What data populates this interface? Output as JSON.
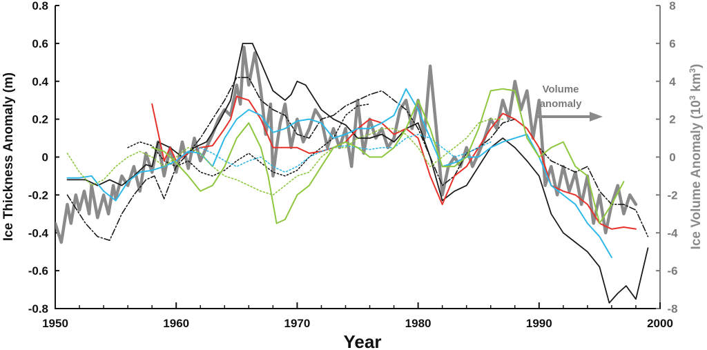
{
  "chart_data": {
    "type": "line",
    "xlabel": "Year",
    "ylabel_left": "Ice Thickness Anomaly (m)",
    "ylabel_right": "Ice Volume Anomaly (10³ km³)",
    "xlim": [
      1950,
      2000
    ],
    "ylim_left": [
      -0.8,
      0.8
    ],
    "ylim_right": [
      -8,
      8
    ],
    "x_ticks": [
      "1950",
      "1960",
      "1970",
      "1980",
      "1990",
      "2000"
    ],
    "y_ticks_left": [
      "0.8",
      "0.6",
      "0.4",
      "0.2",
      "0",
      "-0.2",
      "-0.4",
      "-0.6",
      "-0.8"
    ],
    "y_ticks_right": [
      "8",
      "6",
      "4",
      "2",
      "0",
      "-2",
      "-4",
      "-6",
      "-8"
    ],
    "grid": false,
    "annotation": {
      "line1": "Volume",
      "line2": "anomaly",
      "arrow": "right"
    },
    "colors": {
      "volume": "#8a8a8a",
      "black": "#1a1a1a",
      "red": "#e8302a",
      "cyan": "#2eb8e8",
      "green": "#8dc63f",
      "axis": "#111111",
      "right_axis": "#7a7a7a"
    },
    "series": [
      {
        "axis": "right",
        "style": "thick-gray",
        "x": [
          1950.0,
          1950.5,
          1951.0,
          1951.3,
          1951.7,
          1952.0,
          1952.4,
          1952.8,
          1953.0,
          1953.5,
          1954.0,
          1954.4,
          1954.8,
          1955.0,
          1955.5,
          1956.0,
          1956.5,
          1957.0,
          1957.5,
          1958.0,
          1958.5,
          1959.0,
          1959.5,
          1960.0,
          1960.5,
          1961.0,
          1961.5,
          1962.0,
          1962.5,
          1963.0,
          1963.5,
          1964.0,
          1964.5,
          1965.0,
          1965.3,
          1965.6,
          1966.0,
          1966.5,
          1967.0,
          1967.4,
          1967.8,
          1968.0,
          1968.3,
          1968.6,
          1969.0,
          1969.5,
          1970.0,
          1970.5,
          1971.0,
          1971.5,
          1972.0,
          1972.5,
          1973.0,
          1973.5,
          1974.0,
          1974.5,
          1975.0,
          1975.5,
          1976.0,
          1976.5,
          1977.0,
          1977.5,
          1978.0,
          1978.5,
          1979.0,
          1979.5,
          1980.0,
          1980.5,
          1981.0,
          1981.5,
          1982.0,
          1982.5,
          1983.0,
          1983.5,
          1984.0,
          1984.5,
          1985.0,
          1985.5,
          1986.0,
          1986.5,
          1987.0,
          1987.5,
          1988.0,
          1988.5,
          1989.0,
          1989.5,
          1990.0,
          1990.5,
          1991.0,
          1991.5,
          1992.0,
          1992.5,
          1993.0,
          1993.5,
          1994.0,
          1994.5,
          1995.0,
          1995.5,
          1996.0,
          1996.5,
          1997.0,
          1997.5,
          1998.0
        ],
        "y": [
          -3.5,
          -4.5,
          -2.5,
          -3.5,
          -2.0,
          -2.8,
          -1.8,
          -3.0,
          -1.5,
          -3.2,
          -2.0,
          -3.0,
          -1.5,
          -2.2,
          -1.0,
          -1.5,
          -0.5,
          -1.8,
          0.2,
          -0.8,
          0.8,
          -1.0,
          0.5,
          -0.8,
          0.8,
          -0.6,
          1.0,
          -0.2,
          0.5,
          1.2,
          2.0,
          2.5,
          2.2,
          3.8,
          2.8,
          5.8,
          3.8,
          5.5,
          3.5,
          1.2,
          2.8,
          -1.0,
          0.5,
          1.8,
          2.8,
          0.5,
          2.0,
          0.8,
          1.5,
          2.5,
          2.0,
          0.5,
          1.5,
          0.5,
          1.5,
          -0.5,
          3.0,
          0.2,
          2.0,
          1.0,
          1.5,
          0.5,
          1.0,
          2.5,
          3.0,
          1.5,
          3.0,
          1.0,
          4.8,
          1.5,
          -2.0,
          -0.5,
          0.0,
          -0.5,
          0.5,
          -0.5,
          0.2,
          1.0,
          2.0,
          1.5,
          3.0,
          2.0,
          4.0,
          2.5,
          3.5,
          1.0,
          3.0,
          -1.5,
          -0.5,
          -2.0,
          -0.5,
          -1.8,
          -0.8,
          -2.5,
          -1.0,
          -3.5,
          -2.0,
          -4.0,
          -2.5,
          -1.5,
          -3.0,
          -2.0,
          -2.5
        ]
      },
      {
        "axis": "left",
        "style": "black-solid",
        "x": [
          1951.0,
          1952.5,
          1953.5,
          1954.5,
          1955.5,
          1956.5,
          1957.5,
          1958.0,
          1958.5,
          1959.5,
          1960.5,
          1961.5,
          1962.5,
          1963.5,
          1964.5,
          1965.5,
          1966.3,
          1967.0,
          1968.0,
          1969.0,
          1969.5,
          1970.0,
          1970.7,
          1971.5,
          1972.0,
          1973.0,
          1974.0,
          1975.0,
          1976.0,
          1977.0,
          1978.0,
          1979.0,
          1980.0,
          1981.0,
          1982.0,
          1983.0,
          1984.0,
          1985.0,
          1986.0,
          1987.0,
          1988.0,
          1989.0,
          1990.0,
          1991.0,
          1992.0,
          1993.0,
          1994.0,
          1995.0,
          1995.8,
          1996.5,
          1997.2,
          1998.0,
          1999.0
        ],
        "y": [
          -0.12,
          -0.12,
          -0.15,
          -0.12,
          -0.15,
          -0.1,
          -0.04,
          -0.05,
          0.08,
          0.05,
          0.0,
          0.05,
          0.08,
          0.18,
          0.3,
          0.6,
          0.6,
          0.5,
          0.35,
          0.3,
          0.33,
          0.4,
          0.38,
          0.3,
          0.25,
          0.2,
          0.17,
          0.1,
          0.1,
          0.12,
          0.08,
          0.15,
          0.18,
          0.0,
          -0.23,
          -0.18,
          -0.15,
          -0.05,
          0.05,
          0.1,
          0.05,
          -0.02,
          -0.1,
          -0.3,
          -0.4,
          -0.45,
          -0.5,
          -0.58,
          -0.77,
          -0.72,
          -0.68,
          -0.75,
          -0.48
        ]
      },
      {
        "axis": "left",
        "style": "black-dashdot",
        "x": [
          1951.0,
          1952.5,
          1953.5,
          1954.5,
          1955.5,
          1956.5,
          1957.5,
          1958.2,
          1959.0,
          1960.0,
          1961.0,
          1962.0,
          1963.0,
          1964.0,
          1965.0,
          1966.0,
          1967.0,
          1968.0,
          1969.0,
          1970.0,
          1971.0,
          1972.0,
          1973.0,
          1974.0,
          1975.0,
          1976.0,
          1977.0,
          1978.0,
          1979.0,
          1980.0,
          1981.0,
          1982.0,
          1983.0,
          1984.0,
          1985.0,
          1986.0,
          1987.0,
          1988.0,
          1989.0,
          1990.0,
          1991.0,
          1992.0,
          1993.0,
          1994.0,
          1995.0,
          1996.0,
          1997.0,
          1998.0,
          1999.0
        ],
        "y": [
          -0.2,
          -0.35,
          -0.42,
          -0.44,
          -0.3,
          -0.2,
          -0.12,
          -0.1,
          -0.22,
          -0.05,
          0.02,
          0.1,
          0.2,
          0.3,
          0.42,
          0.42,
          0.3,
          0.25,
          0.22,
          0.12,
          0.1,
          0.2,
          0.22,
          0.27,
          0.3,
          0.33,
          0.35,
          0.3,
          0.25,
          0.15,
          0.0,
          -0.15,
          -0.1,
          0.02,
          0.05,
          0.1,
          0.18,
          0.2,
          0.15,
          0.05,
          -0.02,
          -0.05,
          -0.08,
          -0.05,
          -0.18,
          -0.25,
          -0.25,
          -0.28,
          -0.42
        ]
      },
      {
        "axis": "left",
        "style": "black-dotted",
        "x": [
          1956.0,
          1957.0,
          1958.0,
          1959.0,
          1960.0,
          1961.0,
          1962.0,
          1963.0,
          1964.0,
          1965.0,
          1966.0,
          1967.0,
          1968.0,
          1969.0,
          1970.0,
          1971.0,
          1972.0,
          1973.0,
          1974.0,
          1975.0,
          1976.0
        ],
        "y": [
          0.05,
          0.08,
          0.06,
          -0.02,
          -0.05,
          -0.02,
          -0.08,
          -0.1,
          -0.07,
          -0.02,
          0.02,
          -0.03,
          -0.08,
          -0.1,
          -0.07,
          0.0,
          0.05,
          0.1,
          0.22,
          0.27,
          0.28
        ]
      },
      {
        "axis": "left",
        "style": "red",
        "x": [
          1958.0,
          1959.0,
          1959.5,
          1960.0,
          1961.0,
          1962.0,
          1963.0,
          1964.0,
          1964.5,
          1965.0,
          1966.0,
          1967.0,
          1968.0,
          1969.0,
          1970.0,
          1971.0,
          1972.0,
          1973.0,
          1974.0,
          1975.0,
          1976.0,
          1977.0,
          1978.0,
          1979.0,
          1980.0,
          1981.0,
          1982.0,
          1983.0,
          1984.0,
          1985.0,
          1986.0,
          1987.0,
          1988.0,
          1989.0,
          1990.0,
          1991.0,
          1992.0,
          1993.0,
          1994.0,
          1995.0,
          1996.0,
          1997.0,
          1998.0
        ],
        "y": [
          0.28,
          -0.02,
          0.05,
          -0.02,
          0.02,
          0.05,
          0.06,
          0.15,
          0.2,
          0.32,
          0.3,
          0.2,
          0.05,
          0.05,
          0.05,
          0.02,
          0.03,
          0.05,
          0.08,
          0.15,
          0.2,
          0.18,
          0.12,
          0.15,
          0.1,
          -0.1,
          -0.25,
          -0.1,
          -0.05,
          0.05,
          0.15,
          0.23,
          0.2,
          0.15,
          0.05,
          -0.15,
          -0.18,
          -0.2,
          -0.25,
          -0.35,
          -0.38,
          -0.37,
          -0.38
        ]
      },
      {
        "axis": "left",
        "style": "cyan-solid",
        "x": [
          1951.0,
          1952.0,
          1953.0,
          1954.0,
          1955.0,
          1956.0,
          1957.0,
          1958.0,
          1959.0,
          1960.0,
          1961.0,
          1962.0,
          1963.0,
          1964.0,
          1965.0,
          1966.0,
          1967.0,
          1968.0,
          1969.0,
          1970.0,
          1971.0,
          1972.0,
          1973.0,
          1974.0,
          1975.0,
          1976.0,
          1977.0,
          1978.0,
          1979.0,
          1980.0,
          1981.0,
          1982.0,
          1983.0,
          1984.0,
          1985.0,
          1986.0,
          1987.0,
          1988.0,
          1989.0,
          1990.0,
          1991.0,
          1992.0,
          1993.0,
          1994.0,
          1995.0,
          1996.0
        ],
        "y": [
          -0.11,
          -0.11,
          -0.1,
          -0.18,
          -0.23,
          -0.13,
          -0.08,
          -0.07,
          -0.05,
          -0.02,
          0.03,
          0.02,
          -0.05,
          0.1,
          0.2,
          0.25,
          0.22,
          0.13,
          0.15,
          0.19,
          0.2,
          0.18,
          0.1,
          0.12,
          0.15,
          0.15,
          0.18,
          0.22,
          0.36,
          0.25,
          0.1,
          -0.05,
          -0.03,
          0.0,
          0.0,
          0.05,
          0.08,
          0.1,
          0.12,
          0.0,
          -0.15,
          -0.2,
          -0.25,
          -0.35,
          -0.42,
          -0.53
        ]
      },
      {
        "axis": "left",
        "style": "cyan-dotted",
        "x": [
          1961.0,
          1962.0,
          1963.0,
          1964.0,
          1965.0,
          1966.0,
          1967.0,
          1968.0,
          1969.0,
          1970.0,
          1971.0,
          1972.0,
          1973.0,
          1974.0,
          1975.0,
          1976.0,
          1977.0,
          1978.0,
          1979.0,
          1980.0,
          1981.0,
          1982.0,
          1983.0,
          1984.0,
          1985.0,
          1986.0
        ],
        "y": [
          0.02,
          0.05,
          0.02,
          -0.02,
          -0.05,
          -0.02,
          0.0,
          -0.05,
          -0.08,
          -0.05,
          0.0,
          0.03,
          0.05,
          0.06,
          0.05,
          0.04,
          0.05,
          0.05,
          0.1,
          0.12,
          0.1,
          0.05,
          0.0,
          0.02,
          0.05,
          0.08
        ]
      },
      {
        "axis": "left",
        "style": "green-solid",
        "x": [
          1958.0,
          1959.0,
          1960.0,
          1961.0,
          1962.0,
          1963.0,
          1964.0,
          1965.0,
          1966.0,
          1967.0,
          1967.6,
          1968.3,
          1969.0,
          1970.0,
          1971.0,
          1972.0,
          1973.0,
          1974.0,
          1975.0,
          1976.0,
          1977.0,
          1978.0,
          1979.0,
          1980.0,
          1981.0,
          1982.0,
          1983.0,
          1984.0,
          1985.0,
          1986.0,
          1987.0,
          1988.0,
          1989.0,
          1990.0,
          1991.0,
          1992.0,
          1993.0,
          1994.0,
          1995.0,
          1996.0,
          1997.0
        ],
        "y": [
          0.05,
          0.03,
          -0.03,
          -0.1,
          -0.18,
          -0.15,
          -0.05,
          0.1,
          0.18,
          0.05,
          -0.1,
          -0.35,
          -0.33,
          -0.2,
          -0.15,
          -0.05,
          0.05,
          0.08,
          0.05,
          0.0,
          0.0,
          0.05,
          0.15,
          0.3,
          0.15,
          -0.05,
          -0.05,
          0.0,
          0.15,
          0.35,
          0.36,
          0.35,
          0.1,
          0.0,
          0.05,
          0.08,
          -0.05,
          -0.1,
          -0.35,
          -0.25,
          -0.13
        ]
      },
      {
        "axis": "left",
        "style": "green-dotted",
        "x": [
          1951.0,
          1952.0,
          1953.0,
          1954.0,
          1955.0,
          1956.0,
          1957.0,
          1958.0,
          1959.0,
          1960.0,
          1961.0,
          1962.0,
          1963.0,
          1964.0,
          1965.0,
          1966.0,
          1967.0,
          1968.0,
          1969.0,
          1970.0,
          1971.0,
          1972.0,
          1973.0,
          1974.0,
          1975.0,
          1976.0,
          1977.0,
          1978.0,
          1979.0,
          1980.0,
          1981.0,
          1982.0,
          1983.0,
          1984.0,
          1985.0,
          1986.0,
          1987.0
        ],
        "y": [
          0.02,
          -0.08,
          -0.15,
          -0.12,
          -0.05,
          0.0,
          0.03,
          0.0,
          -0.05,
          0.0,
          0.05,
          0.02,
          -0.05,
          -0.1,
          -0.12,
          -0.15,
          -0.18,
          -0.2,
          -0.15,
          -0.1,
          -0.08,
          0.0,
          0.05,
          0.05,
          0.1,
          0.12,
          0.15,
          0.15,
          0.12,
          0.05,
          -0.05,
          0.0,
          0.05,
          0.1,
          0.18,
          0.2,
          0.2
        ]
      }
    ]
  }
}
